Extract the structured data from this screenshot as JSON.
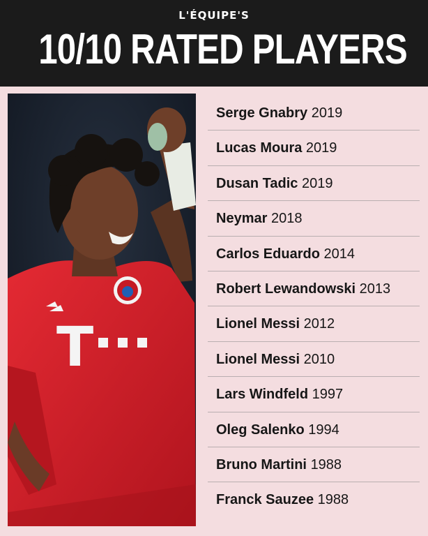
{
  "header": {
    "kicker": "L'ÉQUIPE'S",
    "title": "10/10 RATED PLAYERS"
  },
  "photo": {
    "shirt_sponsor": "T",
    "colors": {
      "header_bg": "#1b1b1b",
      "page_bg": "#f4dde0",
      "shirt": "#d8202a"
    }
  },
  "players": [
    {
      "name": "Serge Gnabry",
      "year": "2019"
    },
    {
      "name": "Lucas Moura",
      "year": "2019"
    },
    {
      "name": "Dusan Tadic",
      "year": "2019"
    },
    {
      "name": "Neymar",
      "year": "2018"
    },
    {
      "name": "Carlos Eduardo",
      "year": "2014"
    },
    {
      "name": "Robert Lewandowski",
      "year": "2013"
    },
    {
      "name": "Lionel Messi",
      "year": "2012"
    },
    {
      "name": "Lionel Messi",
      "year": "2010"
    },
    {
      "name": "Lars Windfeld",
      "year": "1997"
    },
    {
      "name": "Oleg Salenko",
      "year": "1994"
    },
    {
      "name": "Bruno Martini",
      "year": "1988"
    },
    {
      "name": "Franck Sauzee",
      "year": "1988"
    }
  ]
}
